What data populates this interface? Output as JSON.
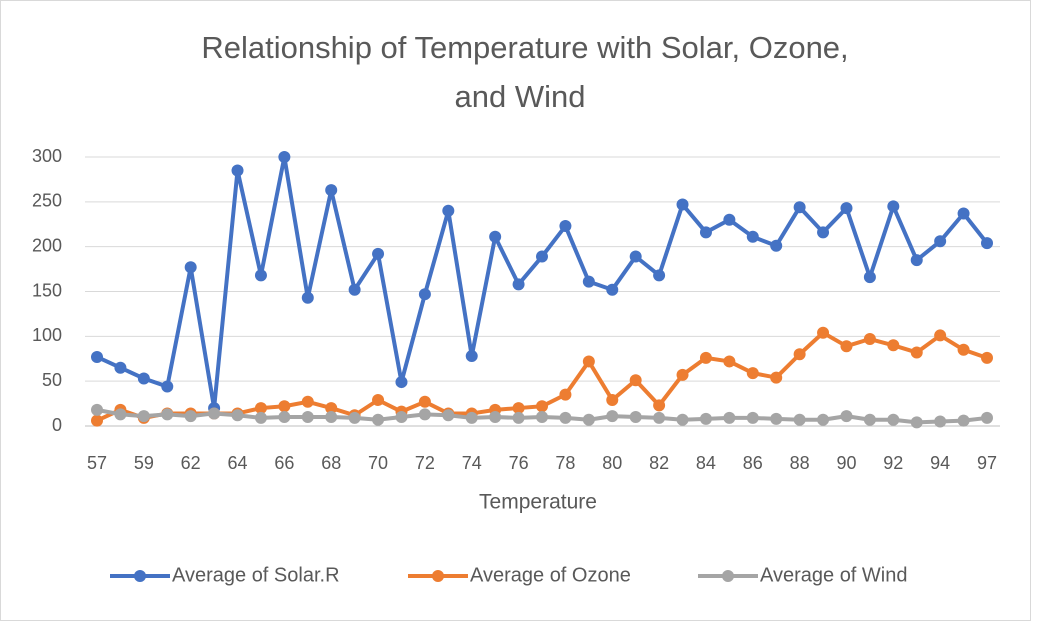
{
  "chart_data": {
    "type": "line",
    "title": [
      "Relationship of Temperature with Solar, Ozone,",
      "and Wind"
    ],
    "x_label": "Temperature",
    "categories": [
      57,
      null,
      59,
      null,
      62,
      null,
      64,
      null,
      66,
      null,
      68,
      null,
      70,
      null,
      72,
      null,
      74,
      null,
      76,
      null,
      78,
      null,
      80,
      null,
      82,
      null,
      84,
      null,
      86,
      null,
      88,
      null,
      90,
      null,
      92,
      null,
      94,
      null,
      97
    ],
    "series": [
      {
        "name": "Average of Solar.R",
        "color": "#4472c4",
        "values": [
          77,
          65,
          53,
          44,
          177,
          20,
          285,
          168,
          300,
          143,
          263,
          152,
          192,
          49,
          147,
          240,
          78,
          211,
          158,
          189,
          223,
          161,
          152,
          189,
          168,
          247,
          216,
          230,
          211,
          201,
          244,
          216,
          243,
          166,
          245,
          185,
          206,
          237,
          204
        ]
      },
      {
        "name": "Average of Ozone",
        "color": "#ed7d31",
        "values": [
          6,
          18,
          9,
          14,
          14,
          14,
          14,
          20,
          22,
          27,
          20,
          12,
          29,
          16,
          27,
          14,
          14,
          18,
          20,
          22,
          35,
          72,
          29,
          51,
          23,
          57,
          76,
          72,
          59,
          54,
          80,
          104,
          89,
          97,
          90,
          82,
          101,
          85,
          76
        ]
      },
      {
        "name": "Average of Wind",
        "color": "#a5a5a5",
        "values": [
          18,
          13,
          11,
          13,
          11,
          14,
          12,
          9,
          10,
          10,
          10,
          9,
          7,
          10,
          13,
          12,
          9,
          10,
          9,
          10,
          9,
          7,
          11,
          10,
          9,
          7,
          8,
          9,
          9,
          8,
          7,
          7,
          11,
          7,
          7,
          4,
          5,
          6,
          9
        ]
      }
    ],
    "ylim": [
      0,
      300
    ],
    "yticks": [
      0,
      50,
      100,
      150,
      200,
      250,
      300
    ],
    "grid": true,
    "legend": "bottom"
  }
}
